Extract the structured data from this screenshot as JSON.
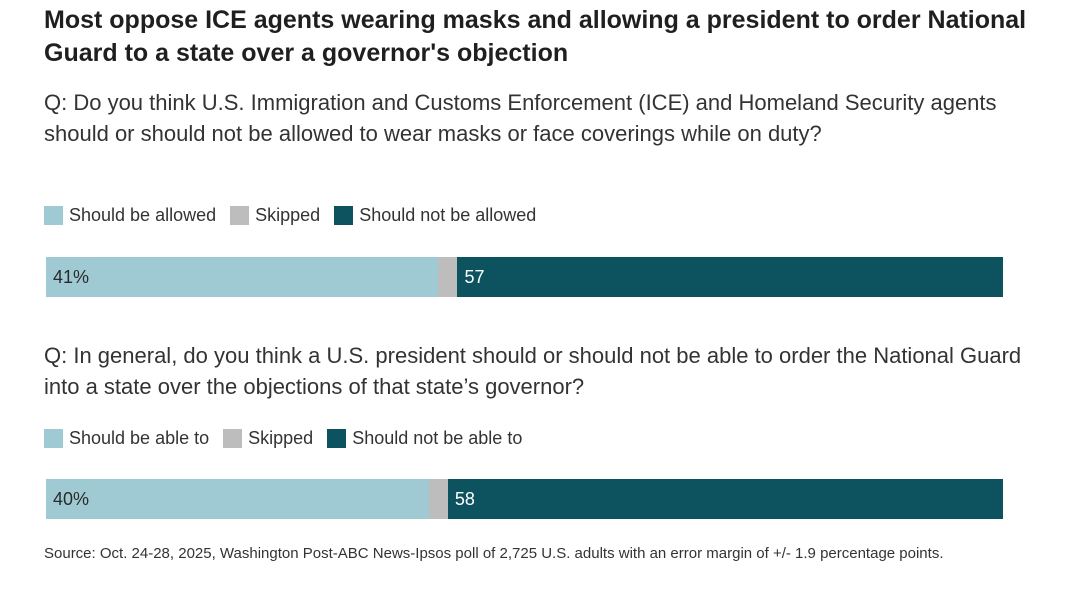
{
  "title": "Most oppose ICE agents wearing masks and allowing a president to order National Guard to a state over a governor's objection",
  "source": "Source: Oct. 24-28, 2025, Washington Post-ABC News-Ipsos poll of 2,725 U.S. adults with an error margin of +/- 1.9 percentage points.",
  "colors": {
    "light": "#9fcad3",
    "skipped": "#bdbdbd",
    "dark": "#0c535f"
  },
  "chart_data": [
    {
      "type": "bar",
      "orientation": "horizontal-stacked",
      "question": "Q: Do you think U.S. Immigration and Customs Enforcement (ICE) and Homeland Security agents should or should not be allowed to wear masks or face coverings while on duty?",
      "series": [
        {
          "name": "Should be allowed",
          "value": 41,
          "label": "41%",
          "color": "#9fcad3"
        },
        {
          "name": "Skipped",
          "value": 2,
          "label": "",
          "color": "#bdbdbd"
        },
        {
          "name": "Should not be allowed",
          "value": 57,
          "label": "57",
          "color": "#0c535f"
        }
      ],
      "xlim": [
        0,
        100
      ],
      "legend": "top-left",
      "grid": false
    },
    {
      "type": "bar",
      "orientation": "horizontal-stacked",
      "question": "Q: In general, do you think a U.S. president should or should not be able to order the National Guard into a state over the objections of that state’s governor?",
      "series": [
        {
          "name": "Should be able to",
          "value": 40,
          "label": "40%",
          "color": "#9fcad3"
        },
        {
          "name": "Skipped",
          "value": 2,
          "label": "",
          "color": "#bdbdbd"
        },
        {
          "name": "Should not be able to",
          "value": 58,
          "label": "58",
          "color": "#0c535f"
        }
      ],
      "xlim": [
        0,
        100
      ],
      "legend": "top-left",
      "grid": false
    }
  ]
}
